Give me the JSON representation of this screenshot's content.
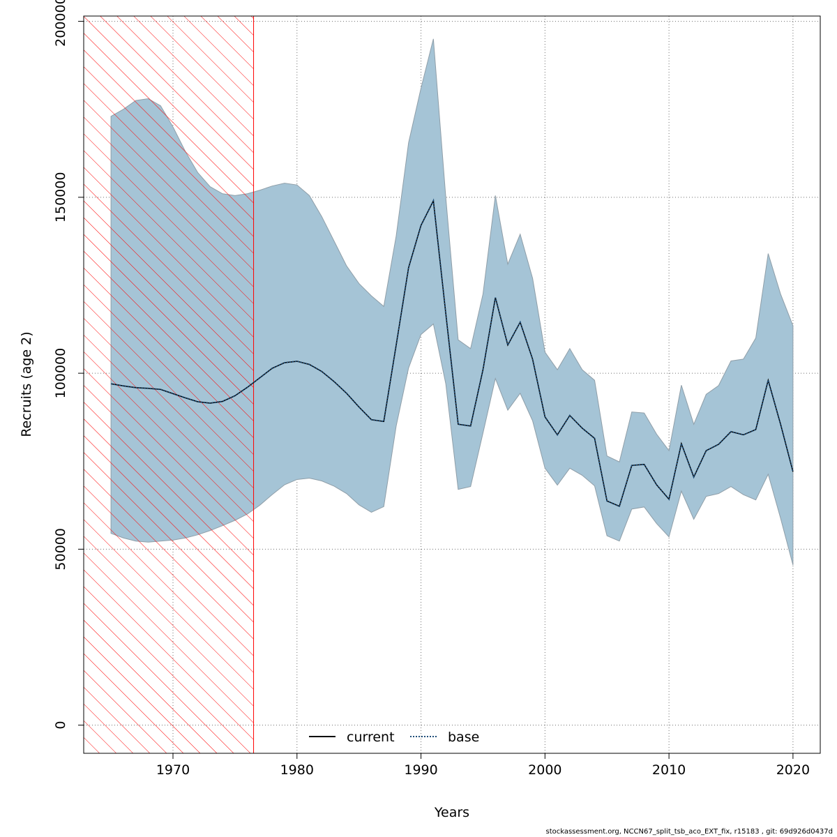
{
  "chart_data": {
    "type": "line",
    "xlabel": "Years",
    "ylabel": "Recruits (age 2)",
    "xlim": [
      1962.8,
      2022.2
    ],
    "ylim": [
      -8000,
      201500
    ],
    "x_ticks": [
      1970,
      1980,
      1990,
      2000,
      2010,
      2020
    ],
    "y_ticks": [
      0,
      50000,
      100000,
      150000,
      200000
    ],
    "y_tick_labels": [
      "0",
      "50000",
      "100000",
      "150000",
      "200000"
    ],
    "grid": true,
    "legend_position": "bottom",
    "legend": [
      {
        "name": "current",
        "style": "solid",
        "color": "#000000"
      },
      {
        "name": "base",
        "style": "dotted",
        "color": "#1f4e79"
      }
    ],
    "shaded_period": {
      "x_start": 1962.8,
      "x_end": 1976.5,
      "color": "#ff0000"
    },
    "years": [
      1965,
      1966,
      1967,
      1968,
      1969,
      1970,
      1971,
      1972,
      1973,
      1974,
      1975,
      1976,
      1977,
      1978,
      1979,
      1980,
      1981,
      1982,
      1983,
      1984,
      1985,
      1986,
      1987,
      1988,
      1989,
      1990,
      1991,
      1992,
      1993,
      1994,
      1995,
      1996,
      1997,
      1998,
      1999,
      2000,
      2001,
      2002,
      2003,
      2004,
      2005,
      2006,
      2007,
      2008,
      2009,
      2010,
      2011,
      2012,
      2013,
      2014,
      2015,
      2016,
      2017,
      2018,
      2019,
      2020
    ],
    "series": [
      {
        "name": "current",
        "style": "solid",
        "color": "#000000",
        "values": [
          97000,
          96400,
          95900,
          95700,
          95400,
          94200,
          93000,
          91900,
          91500,
          92000,
          93600,
          96000,
          98700,
          101400,
          103000,
          103400,
          102500,
          100500,
          97600,
          94300,
          90400,
          86800,
          86300,
          108000,
          130000,
          142000,
          149000,
          117000,
          85500,
          85000,
          101000,
          121500,
          108000,
          114500,
          104000,
          87600,
          82500,
          88000,
          84400,
          81500,
          63700,
          62200,
          73800,
          74100,
          68300,
          64200,
          80000,
          70500,
          78000,
          79800,
          83400,
          82500,
          84000,
          98000,
          85500,
          72000
        ]
      },
      {
        "name": "base",
        "style": "dotted",
        "color": "#1f4e79",
        "values": [
          97000,
          96400,
          95900,
          95700,
          95400,
          94200,
          93000,
          91900,
          91500,
          92000,
          93600,
          96000,
          98700,
          101400,
          103000,
          103400,
          102500,
          100500,
          97600,
          94300,
          90400,
          86800,
          86300,
          108000,
          130000,
          142000,
          149000,
          117000,
          85500,
          85000,
          101000,
          121500,
          108000,
          114500,
          104000,
          87600,
          82500,
          88000,
          84400,
          81500,
          63700,
          62200,
          73800,
          74100,
          68300,
          64200,
          80000,
          70500,
          78000,
          79800,
          83400,
          82500,
          84000,
          98000,
          85500,
          72000
        ]
      }
    ],
    "confidence_band": {
      "color": "#a5c4d6",
      "upper": [
        173000,
        175000,
        177500,
        178000,
        176000,
        170000,
        163000,
        157000,
        153000,
        151000,
        150500,
        151000,
        152000,
        153200,
        154000,
        153500,
        150500,
        144500,
        137500,
        130500,
        125500,
        122000,
        119000,
        139000,
        165500,
        181000,
        195000,
        150000,
        109500,
        107000,
        122500,
        150500,
        131000,
        139500,
        127000,
        106000,
        101000,
        107000,
        101000,
        98000,
        76500,
        74800,
        89000,
        88700,
        82700,
        78000,
        96600,
        85500,
        94000,
        96500,
        103500,
        104000,
        110000,
        134000,
        122500,
        113500
      ],
      "lower": [
        54500,
        53200,
        52300,
        52000,
        52300,
        52600,
        53200,
        54100,
        55300,
        56700,
        58200,
        60000,
        62500,
        65500,
        68300,
        69800,
        70200,
        69400,
        67900,
        65800,
        62600,
        60500,
        62100,
        85000,
        101500,
        111000,
        114000,
        97000,
        67000,
        67800,
        83000,
        98500,
        89500,
        94300,
        86500,
        73000,
        68200,
        73000,
        71000,
        68000,
        53800,
        52300,
        61400,
        62000,
        57300,
        53500,
        66500,
        58500,
        65000,
        65800,
        67800,
        65500,
        64000,
        71300,
        58800,
        45500
      ]
    },
    "footer_text": "stockassessment.org, NCCN67_split_tsb_aco_EXT_fix, r15183 , git: 69d926d0437d"
  },
  "colors": {
    "band_fill": "#a5c4d6",
    "band_stroke": "#8f9ea8",
    "hatch": "#ff0000",
    "base_line": "#1f4e79",
    "grid": "#6e6e6e"
  }
}
